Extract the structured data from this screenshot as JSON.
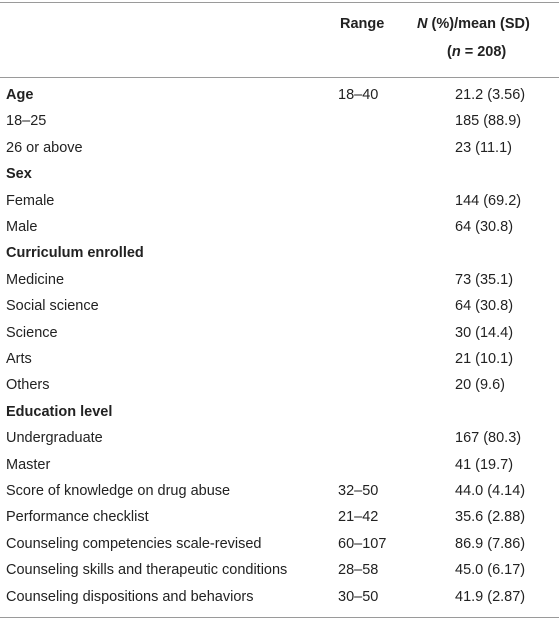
{
  "table": {
    "header": {
      "range": "Range",
      "value_line1": [
        "N",
        "(%)/mean (SD)"
      ],
      "value_line2": [
        "(",
        "n",
        "= 208)"
      ]
    },
    "rows": [
      {
        "label": "Age",
        "range": "18–40",
        "value": "21.2 (3.56)",
        "heading": true
      },
      {
        "label": "18–25",
        "value": "185 (88.9)"
      },
      {
        "label": "26 or above",
        "value": "23 (11.1)"
      },
      {
        "label": "Sex",
        "heading": true
      },
      {
        "label": "Female",
        "value": "144 (69.2)"
      },
      {
        "label": "Male",
        "value": "64 (30.8)"
      },
      {
        "label": "Curriculum enrolled",
        "heading": true
      },
      {
        "label": "Medicine",
        "value": "73 (35.1)"
      },
      {
        "label": "Social science",
        "value": "64 (30.8)"
      },
      {
        "label": "Science",
        "value": "30 (14.4)"
      },
      {
        "label": "Arts",
        "value": "21 (10.1)"
      },
      {
        "label": "Others",
        "value": "20 (9.6)"
      },
      {
        "label": "Education level",
        "heading": true
      },
      {
        "label": "Undergraduate",
        "value": "167 (80.3)"
      },
      {
        "label": "Master",
        "value": "41 (19.7)"
      },
      {
        "label": "Score of knowledge on drug abuse",
        "range": "32–50",
        "value": "44.0 (4.14)"
      },
      {
        "label": "Performance checklist",
        "range": "21–42",
        "value": "35.6 (2.88)"
      },
      {
        "label": "Counseling competencies scale-revised",
        "range": "60–107",
        "value": "86.9 (7.86)"
      },
      {
        "label": "Counseling skills and therapeutic conditions",
        "range": "28–58",
        "value": "45.0 (6.17)"
      },
      {
        "label": "Counseling dispositions and behaviors",
        "range": "30–50",
        "value": "41.9 (2.87)"
      }
    ]
  }
}
